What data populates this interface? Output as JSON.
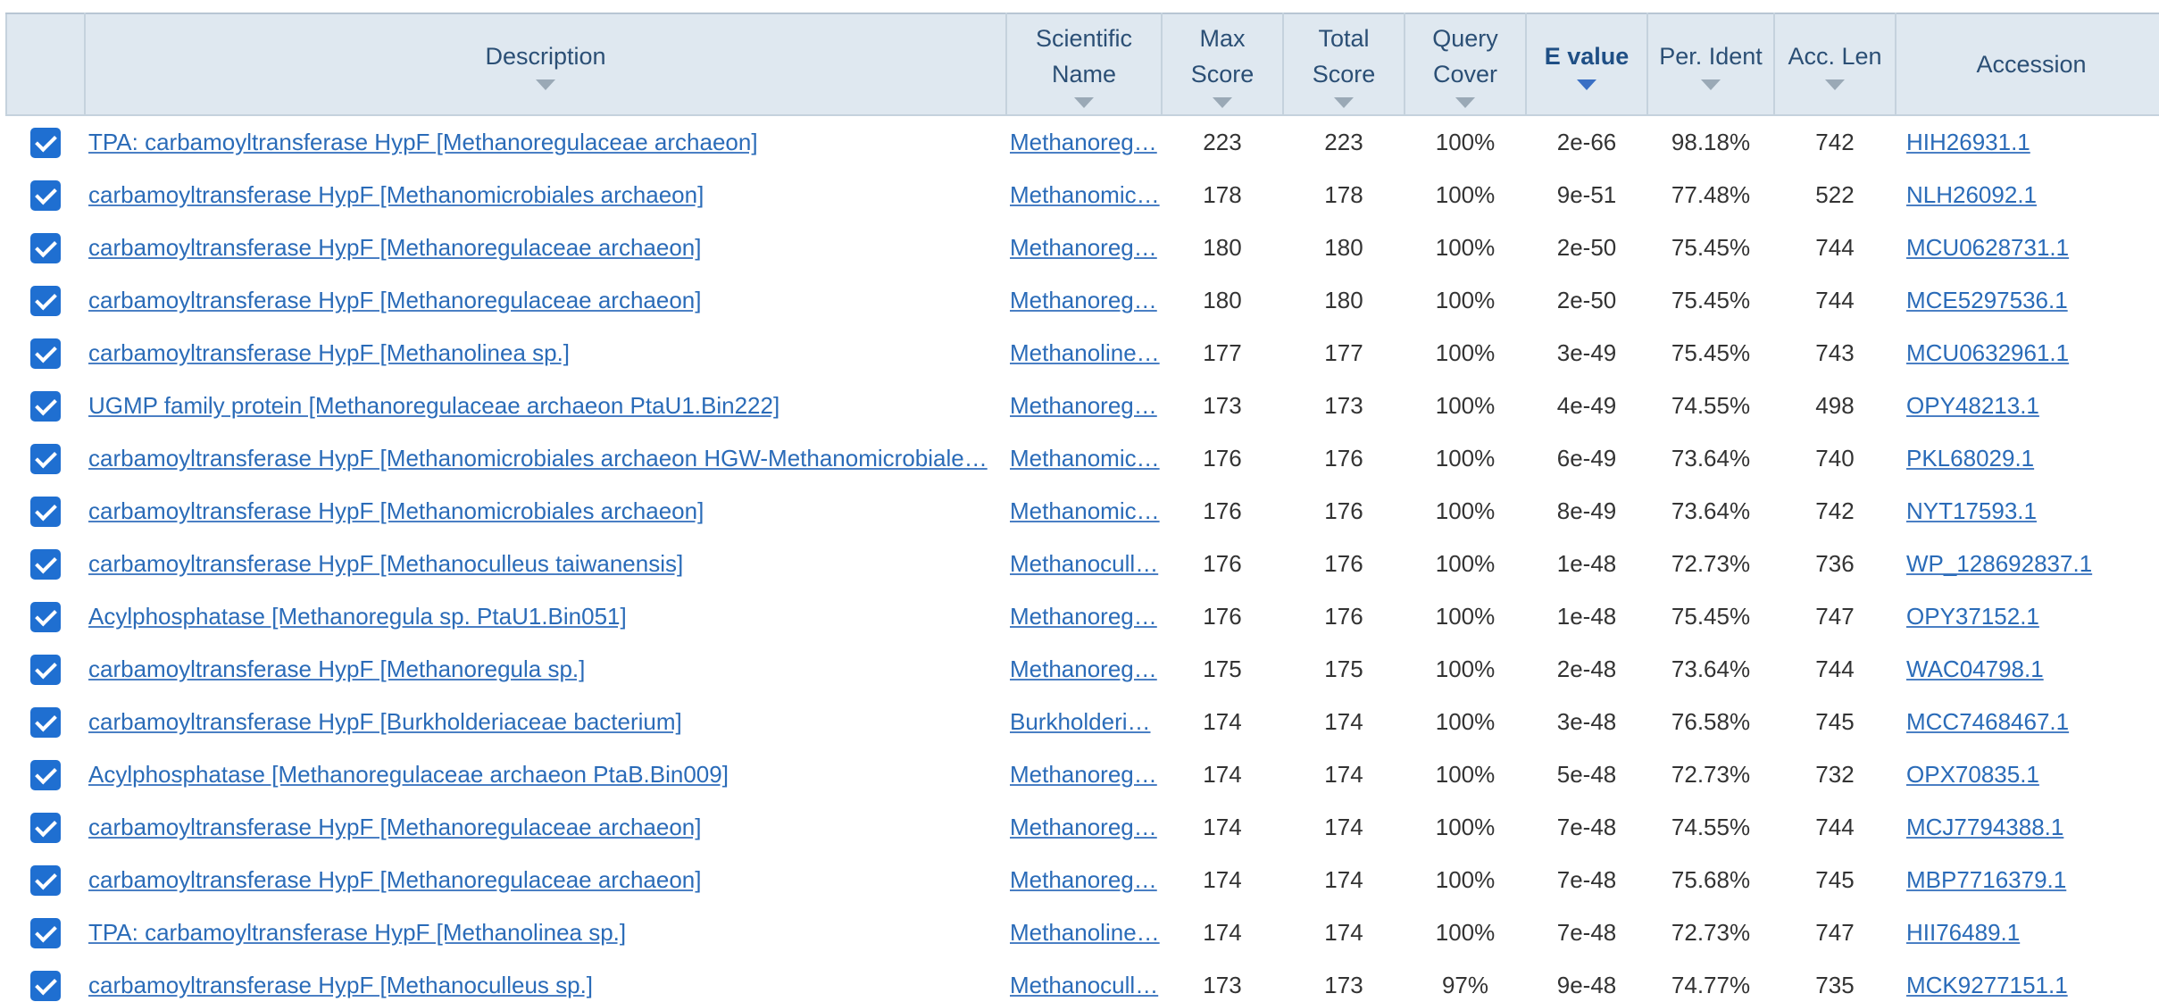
{
  "table": {
    "columns": [
      {
        "label": "",
        "key": "select"
      },
      {
        "label": "Description",
        "key": "description"
      },
      {
        "label": "Scientific\nName",
        "key": "scientific_name"
      },
      {
        "label": "Max\nScore",
        "key": "max_score"
      },
      {
        "label": "Total\nScore",
        "key": "total_score"
      },
      {
        "label": "Query\nCover",
        "key": "query_cover"
      },
      {
        "label": "E value",
        "key": "e_value",
        "sorted": true
      },
      {
        "label": "Per. Ident",
        "key": "per_ident"
      },
      {
        "label": "Acc. Len",
        "key": "acc_len"
      },
      {
        "label": "Accession",
        "key": "accession"
      }
    ],
    "headers": {
      "description": "Description",
      "scientific_name_1": "Scientific",
      "scientific_name_2": "Name",
      "max_score_1": "Max",
      "max_score_2": "Score",
      "total_score_1": "Total",
      "total_score_2": "Score",
      "query_cover_1": "Query",
      "query_cover_2": "Cover",
      "e_value": "E value",
      "per_ident": "Per. Ident",
      "acc_len": "Acc. Len",
      "accession": "Accession"
    },
    "rows": [
      {
        "checked": true,
        "description": "TPA: carbamoyltransferase HypF [Methanoregulaceae archaeon]",
        "scientific_name": "Methanoreg…",
        "max_score": "223",
        "total_score": "223",
        "query_cover": "100%",
        "e_value": "2e-66",
        "per_ident": "98.18%",
        "acc_len": "742",
        "accession": "HIH26931.1"
      },
      {
        "checked": true,
        "description": "carbamoyltransferase HypF [Methanomicrobiales archaeon]",
        "scientific_name": "Methanomic…",
        "max_score": "178",
        "total_score": "178",
        "query_cover": "100%",
        "e_value": "9e-51",
        "per_ident": "77.48%",
        "acc_len": "522",
        "accession": "NLH26092.1"
      },
      {
        "checked": true,
        "description": "carbamoyltransferase HypF [Methanoregulaceae archaeon]",
        "scientific_name": "Methanoreg…",
        "max_score": "180",
        "total_score": "180",
        "query_cover": "100%",
        "e_value": "2e-50",
        "per_ident": "75.45%",
        "acc_len": "744",
        "accession": "MCU0628731.1"
      },
      {
        "checked": true,
        "description": "carbamoyltransferase HypF [Methanoregulaceae archaeon]",
        "scientific_name": "Methanoreg…",
        "max_score": "180",
        "total_score": "180",
        "query_cover": "100%",
        "e_value": "2e-50",
        "per_ident": "75.45%",
        "acc_len": "744",
        "accession": "MCE5297536.1"
      },
      {
        "checked": true,
        "description": "carbamoyltransferase HypF [Methanolinea sp.]",
        "scientific_name": "Methanoline…",
        "max_score": "177",
        "total_score": "177",
        "query_cover": "100%",
        "e_value": "3e-49",
        "per_ident": "75.45%",
        "acc_len": "743",
        "accession": "MCU0632961.1"
      },
      {
        "checked": true,
        "description": "UGMP family protein [Methanoregulaceae archaeon PtaU1.Bin222]",
        "scientific_name": "Methanoreg…",
        "max_score": "173",
        "total_score": "173",
        "query_cover": "100%",
        "e_value": "4e-49",
        "per_ident": "74.55%",
        "acc_len": "498",
        "accession": "OPY48213.1"
      },
      {
        "checked": true,
        "description": "carbamoyltransferase HypF [Methanomicrobiales archaeon HGW-Methanomicrobiale…",
        "scientific_name": "Methanomic…",
        "max_score": "176",
        "total_score": "176",
        "query_cover": "100%",
        "e_value": "6e-49",
        "per_ident": "73.64%",
        "acc_len": "740",
        "accession": "PKL68029.1"
      },
      {
        "checked": true,
        "description": "carbamoyltransferase HypF [Methanomicrobiales archaeon]",
        "scientific_name": "Methanomic…",
        "max_score": "176",
        "total_score": "176",
        "query_cover": "100%",
        "e_value": "8e-49",
        "per_ident": "73.64%",
        "acc_len": "742",
        "accession": "NYT17593.1"
      },
      {
        "checked": true,
        "description": "carbamoyltransferase HypF [Methanoculleus taiwanensis]",
        "scientific_name": "Methanocull…",
        "max_score": "176",
        "total_score": "176",
        "query_cover": "100%",
        "e_value": "1e-48",
        "per_ident": "72.73%",
        "acc_len": "736",
        "accession": "WP_128692837.1"
      },
      {
        "checked": true,
        "description": "Acylphosphatase [Methanoregula sp. PtaU1.Bin051]",
        "scientific_name": "Methanoreg…",
        "max_score": "176",
        "total_score": "176",
        "query_cover": "100%",
        "e_value": "1e-48",
        "per_ident": "75.45%",
        "acc_len": "747",
        "accession": "OPY37152.1"
      },
      {
        "checked": true,
        "description": "carbamoyltransferase HypF [Methanoregula sp.]",
        "scientific_name": "Methanoreg…",
        "max_score": "175",
        "total_score": "175",
        "query_cover": "100%",
        "e_value": "2e-48",
        "per_ident": "73.64%",
        "acc_len": "744",
        "accession": "WAC04798.1"
      },
      {
        "checked": true,
        "description": "carbamoyltransferase HypF [Burkholderiaceae bacterium]",
        "scientific_name": "Burkholderi…",
        "max_score": "174",
        "total_score": "174",
        "query_cover": "100%",
        "e_value": "3e-48",
        "per_ident": "76.58%",
        "acc_len": "745",
        "accession": "MCC7468467.1"
      },
      {
        "checked": true,
        "description": "Acylphosphatase [Methanoregulaceae archaeon PtaB.Bin009]",
        "scientific_name": "Methanoreg…",
        "max_score": "174",
        "total_score": "174",
        "query_cover": "100%",
        "e_value": "5e-48",
        "per_ident": "72.73%",
        "acc_len": "732",
        "accession": "OPX70835.1"
      },
      {
        "checked": true,
        "description": "carbamoyltransferase HypF [Methanoregulaceae archaeon]",
        "scientific_name": "Methanoreg…",
        "max_score": "174",
        "total_score": "174",
        "query_cover": "100%",
        "e_value": "7e-48",
        "per_ident": "74.55%",
        "acc_len": "744",
        "accession": "MCJ7794388.1"
      },
      {
        "checked": true,
        "description": "carbamoyltransferase HypF [Methanoregulaceae archaeon]",
        "scientific_name": "Methanoreg…",
        "max_score": "174",
        "total_score": "174",
        "query_cover": "100%",
        "e_value": "7e-48",
        "per_ident": "75.68%",
        "acc_len": "745",
        "accession": "MBP7716379.1"
      },
      {
        "checked": true,
        "description": "TPA: carbamoyltransferase HypF [Methanolinea sp.]",
        "scientific_name": "Methanoline…",
        "max_score": "174",
        "total_score": "174",
        "query_cover": "100%",
        "e_value": "7e-48",
        "per_ident": "72.73%",
        "acc_len": "747",
        "accession": "HII76489.1"
      },
      {
        "checked": true,
        "description": "carbamoyltransferase HypF [Methanoculleus sp.]",
        "scientific_name": "Methanocull…",
        "max_score": "173",
        "total_score": "173",
        "query_cover": "97%",
        "e_value": "9e-48",
        "per_ident": "74.77%",
        "acc_len": "735",
        "accession": "MCK9277151.1"
      }
    ]
  },
  "colors": {
    "header_bg": "#dfe8f0",
    "link": "#2a6bb8",
    "checkbox": "#1f6fd1",
    "sorted_arrow": "#3a6fc4"
  },
  "icons": {
    "checkbox": "checkbox-checked-icon",
    "sort": "sort-arrow-down-icon"
  }
}
